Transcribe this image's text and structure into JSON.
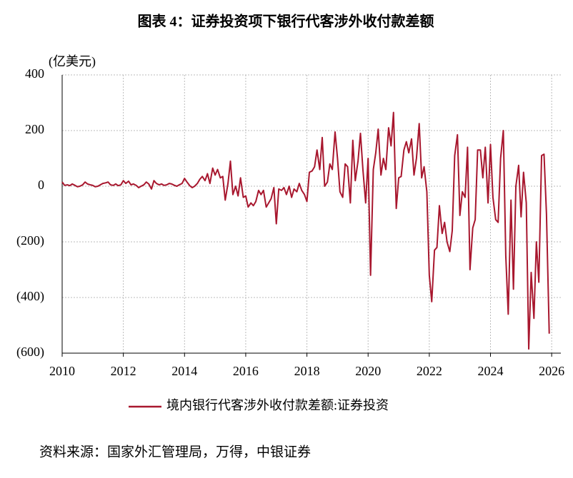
{
  "chart_data": {
    "type": "line",
    "title": "图表 4：证券投资项下银行代客涉外收付款差额",
    "y_label": "(亿美元)",
    "source": "资料来源：国家外汇管理局，万得，中银证券",
    "xlim": [
      2010,
      2026.3
    ],
    "xticks": [
      2010,
      2012,
      2014,
      2016,
      2018,
      2020,
      2022,
      2024,
      2026
    ],
    "ylim": [
      -600,
      400
    ],
    "yticks": [
      400,
      200,
      0,
      {
        "value": -200,
        "label": "(200)"
      },
      {
        "value": -400,
        "label": "(400)"
      },
      {
        "value": -600,
        "label": "(600)"
      }
    ],
    "negative_tick_color": "#e00000",
    "grid": true,
    "legend": "bottom",
    "x": [
      2010,
      2010.08,
      2010.17,
      2010.25,
      2010.33,
      2010.42,
      2010.5,
      2010.58,
      2010.67,
      2010.75,
      2010.83,
      2010.92,
      2011,
      2011.08,
      2011.17,
      2011.25,
      2011.33,
      2011.42,
      2011.5,
      2011.58,
      2011.67,
      2011.75,
      2011.83,
      2011.92,
      2012,
      2012.08,
      2012.17,
      2012.25,
      2012.33,
      2012.42,
      2012.5,
      2012.58,
      2012.67,
      2012.75,
      2012.83,
      2012.92,
      2013,
      2013.08,
      2013.17,
      2013.25,
      2013.33,
      2013.42,
      2013.5,
      2013.58,
      2013.67,
      2013.75,
      2013.83,
      2013.92,
      2014,
      2014.08,
      2014.17,
      2014.25,
      2014.33,
      2014.42,
      2014.5,
      2014.58,
      2014.67,
      2014.75,
      2014.83,
      2014.92,
      2015,
      2015.08,
      2015.17,
      2015.25,
      2015.33,
      2015.42,
      2015.5,
      2015.58,
      2015.67,
      2015.75,
      2015.83,
      2015.92,
      2016,
      2016.08,
      2016.17,
      2016.25,
      2016.33,
      2016.42,
      2016.5,
      2016.58,
      2016.67,
      2016.75,
      2016.83,
      2016.92,
      2017,
      2017.08,
      2017.17,
      2017.25,
      2017.33,
      2017.42,
      2017.5,
      2017.58,
      2017.67,
      2017.75,
      2017.83,
      2017.92,
      2018,
      2018.08,
      2018.17,
      2018.25,
      2018.33,
      2018.42,
      2018.5,
      2018.58,
      2018.67,
      2018.75,
      2018.83,
      2018.92,
      2019,
      2019.08,
      2019.17,
      2019.25,
      2019.33,
      2019.42,
      2019.5,
      2019.58,
      2019.67,
      2019.75,
      2019.83,
      2019.92,
      2020,
      2020.08,
      2020.17,
      2020.25,
      2020.33,
      2020.42,
      2020.5,
      2020.58,
      2020.67,
      2020.75,
      2020.83,
      2020.92,
      2021,
      2021.08,
      2021.17,
      2021.25,
      2021.33,
      2021.42,
      2021.5,
      2021.58,
      2021.67,
      2021.75,
      2021.83,
      2021.92,
      2022,
      2022.08,
      2022.17,
      2022.25,
      2022.33,
      2022.42,
      2022.5,
      2022.58,
      2022.67,
      2022.75,
      2022.83,
      2022.92,
      2023,
      2023.08,
      2023.17,
      2023.25,
      2023.33,
      2023.42,
      2023.5,
      2023.58,
      2023.67,
      2023.75,
      2023.83,
      2023.92,
      2024,
      2024.08,
      2024.17,
      2024.25,
      2024.33,
      2024.42,
      2024.5,
      2024.58,
      2024.67,
      2024.75,
      2024.83,
      2024.92,
      2025,
      2025.08,
      2025.17,
      2025.25,
      2025.33,
      2025.42,
      2025.5,
      2025.58,
      2025.67,
      2025.75,
      2025.83,
      2025.92
    ],
    "series": [
      {
        "name": "境内银行代客涉外收付款差额:证券投资",
        "color": "#a8172e",
        "values": [
          15,
          3,
          5,
          2,
          8,
          3,
          -2,
          0,
          5,
          15,
          8,
          5,
          3,
          -2,
          0,
          5,
          10,
          12,
          15,
          5,
          3,
          8,
          2,
          5,
          20,
          10,
          18,
          5,
          8,
          3,
          -5,
          0,
          5,
          15,
          8,
          -10,
          20,
          10,
          5,
          8,
          3,
          5,
          10,
          8,
          3,
          0,
          5,
          10,
          28,
          15,
          2,
          -5,
          0,
          10,
          25,
          35,
          20,
          45,
          10,
          65,
          40,
          60,
          30,
          35,
          -50,
          10,
          90,
          -30,
          0,
          -35,
          30,
          -40,
          -35,
          -75,
          -60,
          -70,
          -55,
          -15,
          -30,
          -15,
          -75,
          -60,
          -45,
          -5,
          -135,
          -10,
          -15,
          -5,
          -30,
          0,
          -40,
          -10,
          -20,
          10,
          -15,
          -30,
          -55,
          50,
          55,
          70,
          130,
          60,
          175,
          0,
          15,
          80,
          60,
          195,
          100,
          -20,
          -40,
          80,
          70,
          -60,
          165,
          20,
          90,
          190,
          60,
          -60,
          100,
          -320,
          60,
          120,
          205,
          40,
          100,
          60,
          210,
          145,
          265,
          -80,
          30,
          35,
          130,
          160,
          120,
          170,
          40,
          100,
          225,
          30,
          70,
          -20,
          -320,
          -415,
          -230,
          -220,
          -70,
          -170,
          -130,
          -200,
          -235,
          -160,
          110,
          185,
          -105,
          -20,
          -40,
          140,
          -300,
          -150,
          -120,
          130,
          130,
          30,
          140,
          -60,
          150,
          -40,
          -120,
          -130,
          100,
          200,
          -250,
          -460,
          -50,
          -370,
          0,
          75,
          -110,
          50,
          -60,
          -585,
          -310,
          -475,
          -200,
          -345,
          110,
          115,
          -100,
          -530
        ]
      }
    ]
  }
}
